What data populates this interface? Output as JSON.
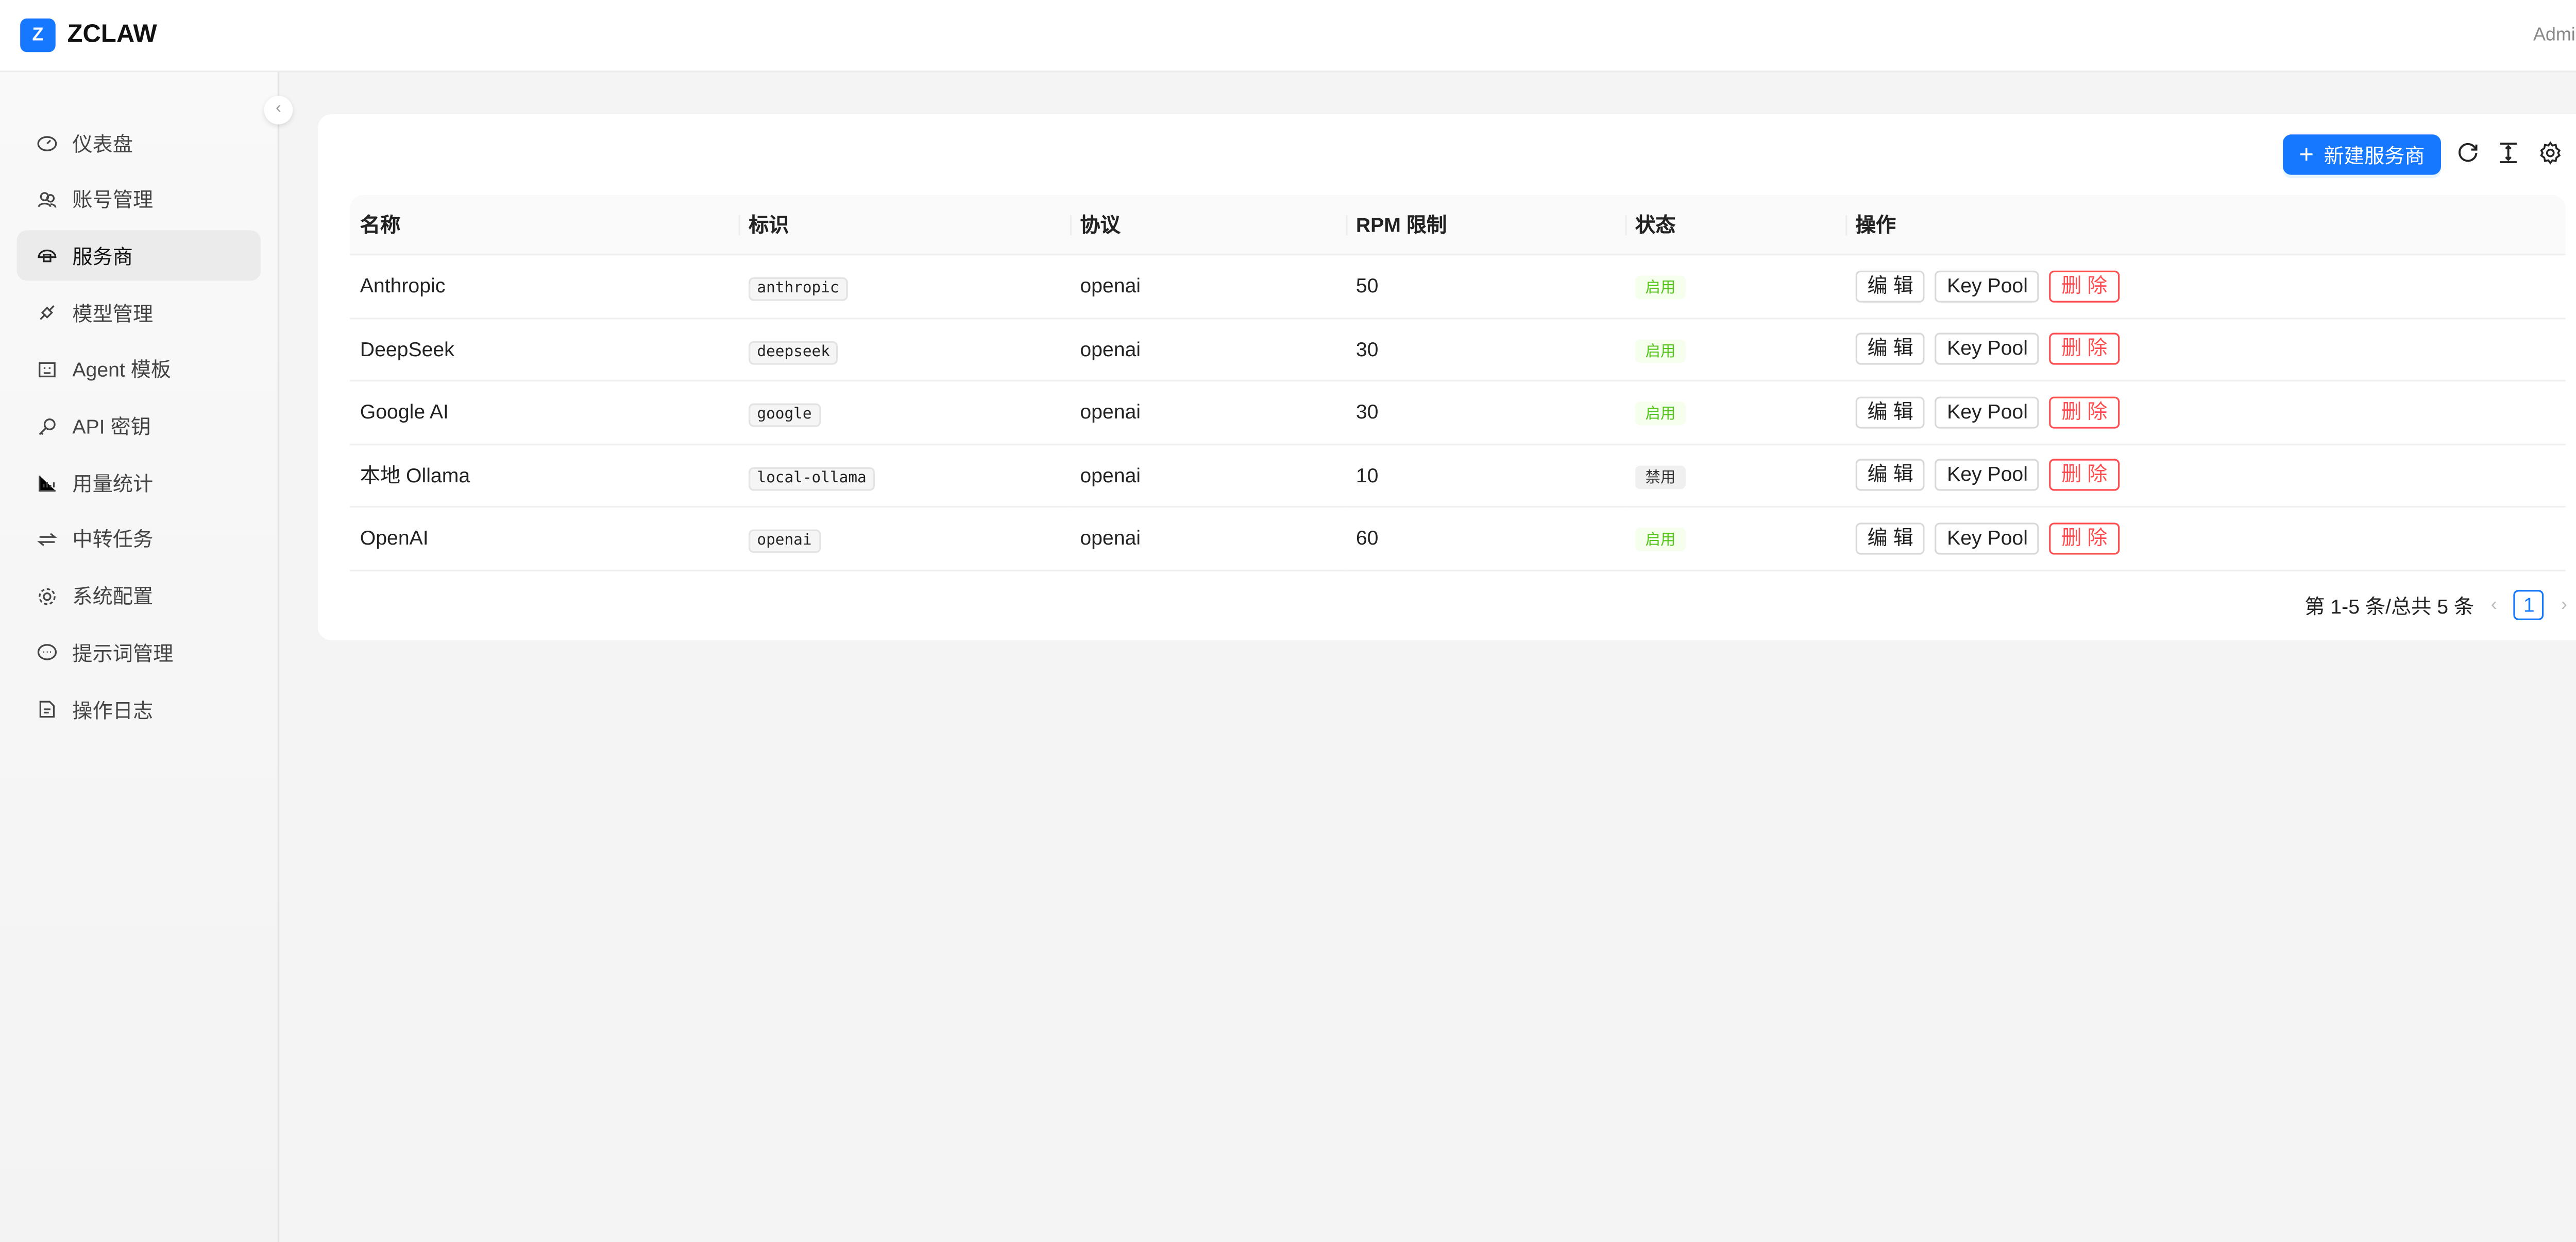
{
  "app": {
    "logo_letter": "Z",
    "brand": "ZCLAW",
    "user": "Admin"
  },
  "sidebar": {
    "items": [
      {
        "label": "仪表盘",
        "icon": "dashboard-icon"
      },
      {
        "label": "账号管理",
        "icon": "users-icon"
      },
      {
        "label": "服务商",
        "icon": "cloud-icon",
        "active": true
      },
      {
        "label": "模型管理",
        "icon": "api-icon"
      },
      {
        "label": "Agent 模板",
        "icon": "robot-icon"
      },
      {
        "label": "API 密钥",
        "icon": "key-icon"
      },
      {
        "label": "用量统计",
        "icon": "bar-chart-icon"
      },
      {
        "label": "中转任务",
        "icon": "swap-icon"
      },
      {
        "label": "系统配置",
        "icon": "gear-icon"
      },
      {
        "label": "提示词管理",
        "icon": "message-icon"
      },
      {
        "label": "操作日志",
        "icon": "file-icon"
      }
    ]
  },
  "toolbar": {
    "new_label": "新建服务商"
  },
  "table": {
    "columns": [
      "名称",
      "标识",
      "协议",
      "RPM 限制",
      "状态",
      "操作"
    ],
    "rows": [
      {
        "name": "Anthropic",
        "id": "anthropic",
        "protocol": "openai",
        "rpm": "50",
        "status": "启用"
      },
      {
        "name": "DeepSeek",
        "id": "deepseek",
        "protocol": "openai",
        "rpm": "30",
        "status": "启用"
      },
      {
        "name": "Google AI",
        "id": "google",
        "protocol": "openai",
        "rpm": "30",
        "status": "启用"
      },
      {
        "name": "本地 Ollama",
        "id": "local-ollama",
        "protocol": "openai",
        "rpm": "10",
        "status": "禁用"
      },
      {
        "name": "OpenAI",
        "id": "openai",
        "protocol": "openai",
        "rpm": "60",
        "status": "启用"
      }
    ],
    "actions": {
      "edit": "编 辑",
      "keypool": "Key Pool",
      "delete": "删 除"
    }
  },
  "pagination": {
    "summary": "第 1-5 条/总共 5 条",
    "current": "1"
  },
  "colors": {
    "primary": "#1677ff",
    "danger": "#ff4d4f",
    "success": "#52c41a"
  }
}
